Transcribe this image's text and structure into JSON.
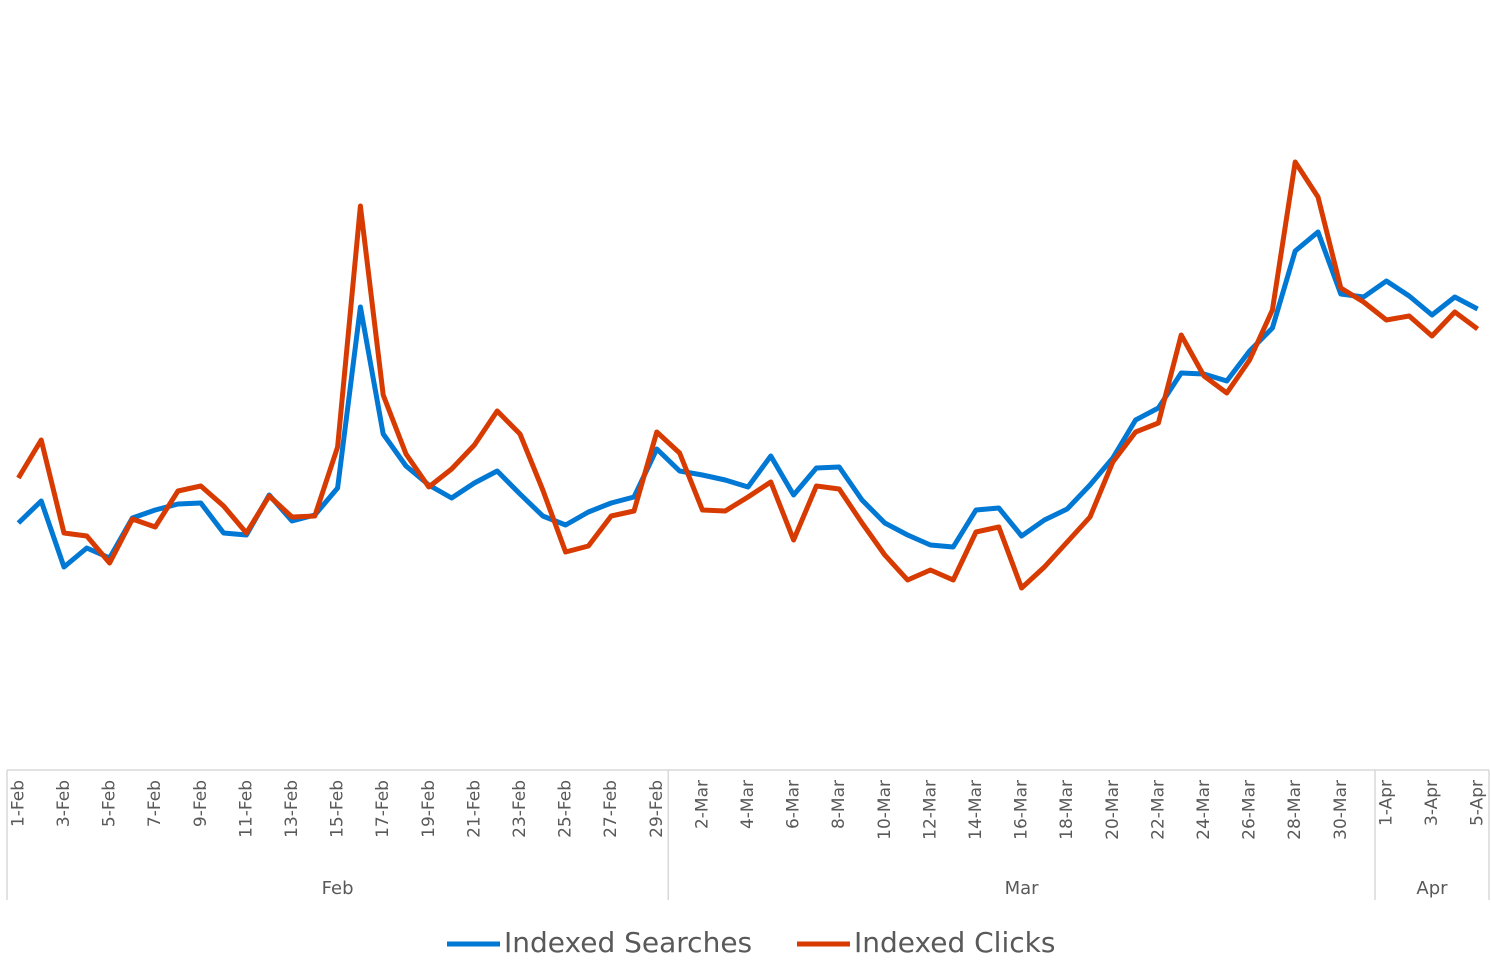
{
  "chart_data": {
    "type": "line",
    "categories": [
      "1-Feb",
      null,
      "3-Feb",
      null,
      "5-Feb",
      null,
      "7-Feb",
      null,
      "9-Feb",
      null,
      "11-Feb",
      null,
      "13-Feb",
      null,
      "15-Feb",
      null,
      "17-Feb",
      null,
      "19-Feb",
      null,
      "21-Feb",
      null,
      "23-Feb",
      null,
      "25-Feb",
      null,
      "27-Feb",
      null,
      "29-Feb",
      null,
      "2-Mar",
      null,
      "4-Mar",
      null,
      "6-Mar",
      null,
      "8-Mar",
      null,
      "10-Mar",
      null,
      "12-Mar",
      null,
      "14-Mar",
      null,
      "16-Mar",
      null,
      "18-Mar",
      null,
      "20-Mar",
      null,
      "22-Mar",
      null,
      "24-Mar",
      null,
      "26-Mar",
      null,
      "28-Mar",
      null,
      "30-Mar",
      null,
      "1-Apr",
      null,
      "3-Apr",
      null,
      "5-Apr"
    ],
    "groups": [
      {
        "label": "Feb",
        "size": 29
      },
      {
        "label": "Mar",
        "size": 31
      },
      {
        "label": "Apr",
        "size": 5
      }
    ],
    "series": [
      {
        "name": "Indexed Searches",
        "color": "#0078d4",
        "values": [
          24.7,
          26.9,
          20.3,
          22.2,
          21.2,
          25.2,
          26,
          26.6,
          26.7,
          23.7,
          23.5,
          27.5,
          24.9,
          25.5,
          28.2,
          46.3,
          33.6,
          30.4,
          28.5,
          27.2,
          28.7,
          29.9,
          27.6,
          25.4,
          24.5,
          25.8,
          26.7,
          27.3,
          32.1,
          29.9,
          29.5,
          29,
          28.3,
          31.4,
          27.5,
          30.2,
          30.3,
          27,
          24.7,
          23.5,
          22.5,
          22.3,
          26,
          26.2,
          23.4,
          25,
          26.1,
          28.5,
          31.2,
          35,
          36.2,
          39.7,
          39.6,
          38.9,
          41.9,
          44.2,
          51.9,
          53.8,
          47.6,
          47.3,
          48.9,
          47.4,
          45.5,
          47.3,
          46.1
        ]
      },
      {
        "name": "Indexed Clicks",
        "color": "#d83b01",
        "values": [
          29.2,
          33,
          23.7,
          23.4,
          20.7,
          25.1,
          24.3,
          27.9,
          28.4,
          26.4,
          23.7,
          27.4,
          25.3,
          25.4,
          32.3,
          56.4,
          37.5,
          31.6,
          28.3,
          30.1,
          32.5,
          35.9,
          33.6,
          28,
          21.8,
          22.4,
          25.4,
          25.9,
          33.8,
          31.7,
          26,
          25.9,
          27.3,
          28.8,
          23,
          28.4,
          28.1,
          24.7,
          21.5,
          19,
          20,
          19,
          23.8,
          24.3,
          18.2,
          20.3,
          22.8,
          25.3,
          30.8,
          33.8,
          34.7,
          43.5,
          39.4,
          37.7,
          41,
          46,
          60.8,
          57.3,
          48.2,
          46.8,
          45,
          45.4,
          43.4,
          45.8,
          44.1
        ]
      }
    ],
    "ylim": [
      0,
      77
    ]
  }
}
